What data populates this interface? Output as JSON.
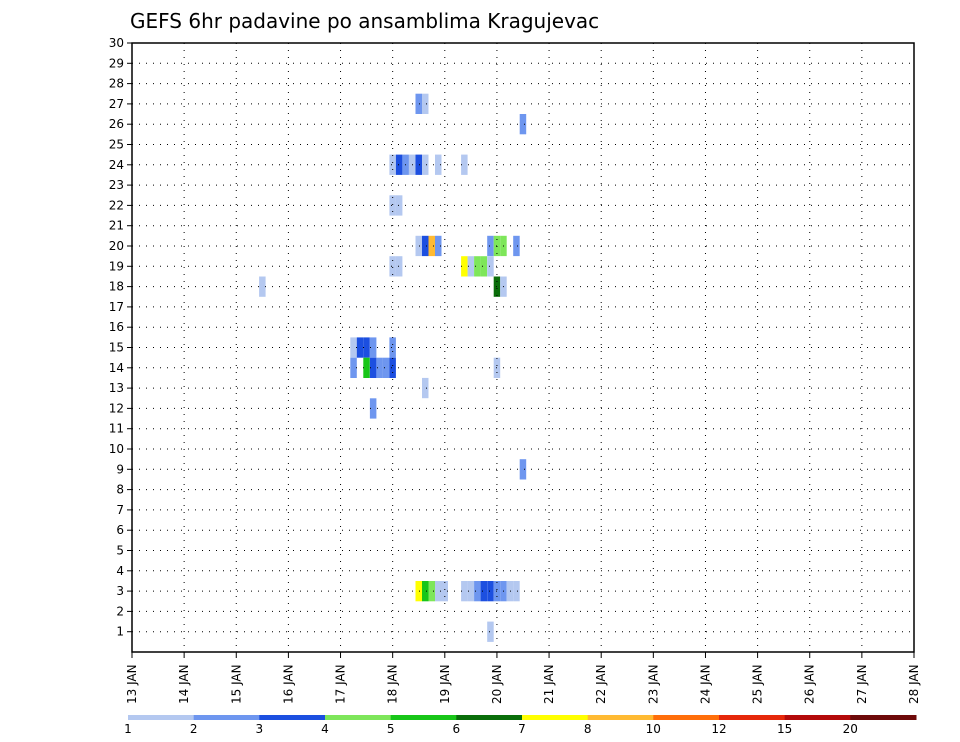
{
  "chart_data": {
    "type": "heatmap",
    "title": "GEFS 6hr padavine po ansamblima Kragujevac",
    "xlabel": "",
    "ylabel": "",
    "x_ticks": [
      "13 JAN",
      "14 JAN",
      "15 JAN",
      "16 JAN",
      "17 JAN",
      "18 JAN",
      "19 JAN",
      "20 JAN",
      "21 JAN",
      "22 JAN",
      "23 JAN",
      "24 JAN",
      "25 JAN",
      "26 JAN",
      "27 JAN",
      "28 JAN"
    ],
    "y_ticks": [
      1,
      2,
      3,
      4,
      5,
      6,
      7,
      8,
      9,
      10,
      11,
      12,
      13,
      14,
      15,
      16,
      17,
      18,
      19,
      20,
      21,
      22,
      23,
      24,
      25,
      26,
      27,
      28,
      29,
      30
    ],
    "xlim": [
      0,
      60
    ],
    "ylim": [
      0,
      30
    ],
    "grid": true,
    "x_unit": "6-hour step from 13 JAN 00Z",
    "colorbar": {
      "labels": [
        "1",
        "2",
        "3",
        "4",
        "5",
        "6",
        "7",
        "8",
        "10",
        "12",
        "15",
        "20"
      ],
      "colors": [
        "#b4c8f0",
        "#6e96ef",
        "#1c4fe0",
        "#7ee65a",
        "#18c618",
        "#0a6e0a",
        "#ffff00",
        "#ffba32",
        "#ff6e0a",
        "#e6280a",
        "#b40a0a",
        "#6e0a0a"
      ]
    },
    "cells": [
      {
        "x": 22.0,
        "y": 27,
        "c": 1
      },
      {
        "x": 22.5,
        "y": 27,
        "c": 0
      },
      {
        "x": 30.0,
        "y": 26,
        "c": 1
      },
      {
        "x": 20.0,
        "y": 24,
        "c": 0
      },
      {
        "x": 20.5,
        "y": 24,
        "c": 2
      },
      {
        "x": 21.0,
        "y": 24,
        "c": 1
      },
      {
        "x": 21.5,
        "y": 24,
        "c": 0
      },
      {
        "x": 22.0,
        "y": 24,
        "c": 2
      },
      {
        "x": 22.5,
        "y": 24,
        "c": 0
      },
      {
        "x": 23.5,
        "y": 24,
        "c": 0
      },
      {
        "x": 25.5,
        "y": 24,
        "c": 0
      },
      {
        "x": 20.0,
        "y": 22,
        "c": 0
      },
      {
        "x": 20.5,
        "y": 22,
        "c": 0
      },
      {
        "x": 22.0,
        "y": 20,
        "c": 0
      },
      {
        "x": 22.5,
        "y": 20,
        "c": 2
      },
      {
        "x": 23.0,
        "y": 20,
        "c": 7
      },
      {
        "x": 23.5,
        "y": 20,
        "c": 1
      },
      {
        "x": 27.5,
        "y": 20,
        "c": 1
      },
      {
        "x": 28.0,
        "y": 20,
        "c": 3
      },
      {
        "x": 28.5,
        "y": 20,
        "c": 3
      },
      {
        "x": 29.5,
        "y": 20,
        "c": 1
      },
      {
        "x": 20.0,
        "y": 19,
        "c": 0
      },
      {
        "x": 20.5,
        "y": 19,
        "c": 0
      },
      {
        "x": 25.5,
        "y": 19,
        "c": 6
      },
      {
        "x": 26.0,
        "y": 19,
        "c": 0
      },
      {
        "x": 26.5,
        "y": 19,
        "c": 3
      },
      {
        "x": 27.0,
        "y": 19,
        "c": 3
      },
      {
        "x": 27.5,
        "y": 19,
        "c": 0
      },
      {
        "x": 10.0,
        "y": 18,
        "c": 0
      },
      {
        "x": 28.0,
        "y": 18,
        "c": 5
      },
      {
        "x": 28.5,
        "y": 18,
        "c": 0
      },
      {
        "x": 17.0,
        "y": 15,
        "c": 0
      },
      {
        "x": 17.5,
        "y": 15,
        "c": 2
      },
      {
        "x": 18.0,
        "y": 15,
        "c": 2
      },
      {
        "x": 18.5,
        "y": 15,
        "c": 1
      },
      {
        "x": 20.0,
        "y": 15,
        "c": 1
      },
      {
        "x": 17.0,
        "y": 14,
        "c": 1
      },
      {
        "x": 18.0,
        "y": 14,
        "c": 4
      },
      {
        "x": 18.5,
        "y": 14,
        "c": 2
      },
      {
        "x": 19.0,
        "y": 14,
        "c": 1
      },
      {
        "x": 19.5,
        "y": 14,
        "c": 1
      },
      {
        "x": 20.0,
        "y": 14,
        "c": 2
      },
      {
        "x": 28.0,
        "y": 14,
        "c": 0
      },
      {
        "x": 22.5,
        "y": 13,
        "c": 0
      },
      {
        "x": 18.5,
        "y": 12,
        "c": 1
      },
      {
        "x": 30.0,
        "y": 9,
        "c": 1
      },
      {
        "x": 22.0,
        "y": 3,
        "c": 6
      },
      {
        "x": 22.5,
        "y": 3,
        "c": 4
      },
      {
        "x": 23.0,
        "y": 3,
        "c": 3
      },
      {
        "x": 23.5,
        "y": 3,
        "c": 0
      },
      {
        "x": 24.0,
        "y": 3,
        "c": 0
      },
      {
        "x": 25.5,
        "y": 3,
        "c": 0
      },
      {
        "x": 26.0,
        "y": 3,
        "c": 0
      },
      {
        "x": 26.5,
        "y": 3,
        "c": 1
      },
      {
        "x": 27.0,
        "y": 3,
        "c": 2
      },
      {
        "x": 27.5,
        "y": 3,
        "c": 2
      },
      {
        "x": 28.0,
        "y": 3,
        "c": 1
      },
      {
        "x": 28.5,
        "y": 3,
        "c": 1
      },
      {
        "x": 29.0,
        "y": 3,
        "c": 0
      },
      {
        "x": 29.5,
        "y": 3,
        "c": 0
      },
      {
        "x": 27.5,
        "y": 1,
        "c": 0
      }
    ]
  }
}
